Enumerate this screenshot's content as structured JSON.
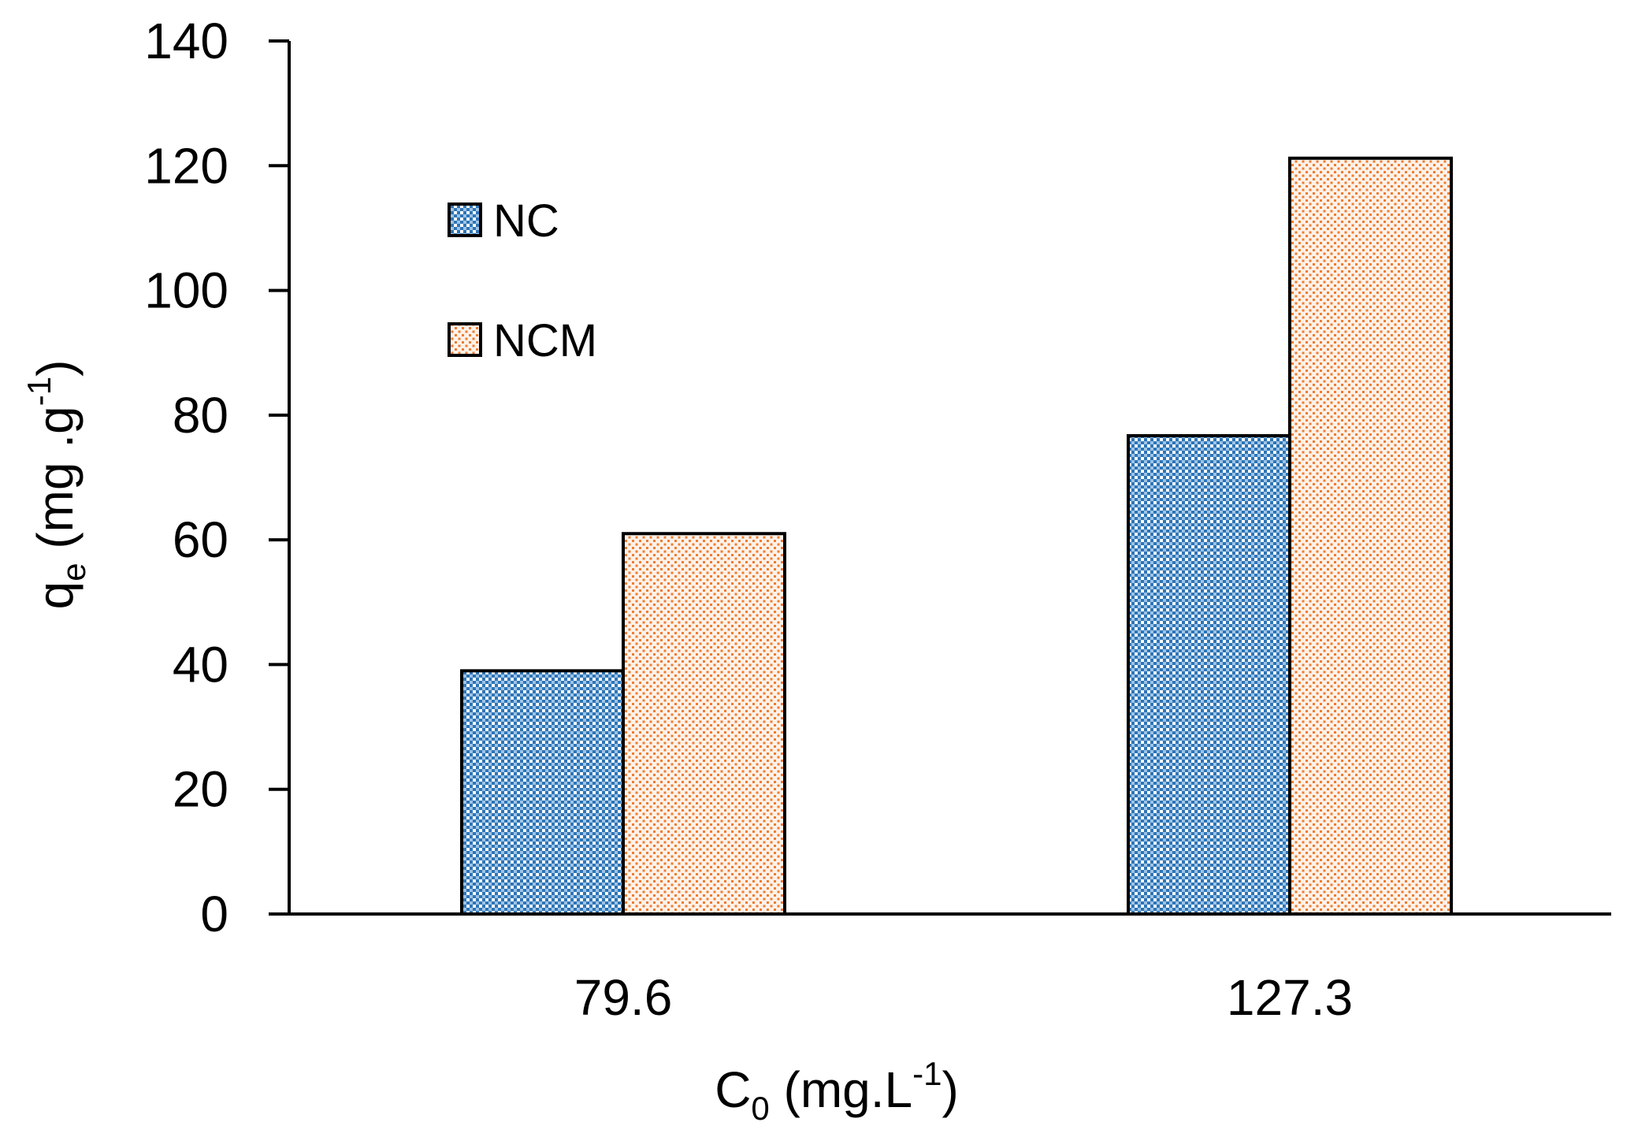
{
  "chart_data": {
    "type": "bar",
    "categories": [
      "79.6",
      "127.3"
    ],
    "series": [
      {
        "name": "NC",
        "values": [
          39,
          76.7
        ],
        "color": "#2e75b6",
        "pattern": "checkered"
      },
      {
        "name": "NCM",
        "values": [
          61,
          121.2
        ],
        "color": "#ed7d31",
        "pattern": "dotted"
      }
    ],
    "ylim": [
      0,
      140
    ],
    "yticks": [
      0,
      20,
      40,
      60,
      80,
      100,
      120,
      140
    ],
    "ytick_labels": [
      "0",
      "20",
      "40",
      "60",
      "80",
      "100",
      "120",
      "140"
    ],
    "xlabel": {
      "main": "C",
      "subscript": "0",
      "unit_open": " (mg.L",
      "superscript": "-1",
      "unit_close": ")"
    },
    "ylabel": {
      "main": "q",
      "subscript": "e",
      "unit_open": " (mg .g",
      "superscript": "-1",
      "unit_close": ")"
    },
    "legend": {
      "position": "upper-left",
      "entries": [
        "NC",
        "NCM"
      ]
    },
    "grid": false
  }
}
